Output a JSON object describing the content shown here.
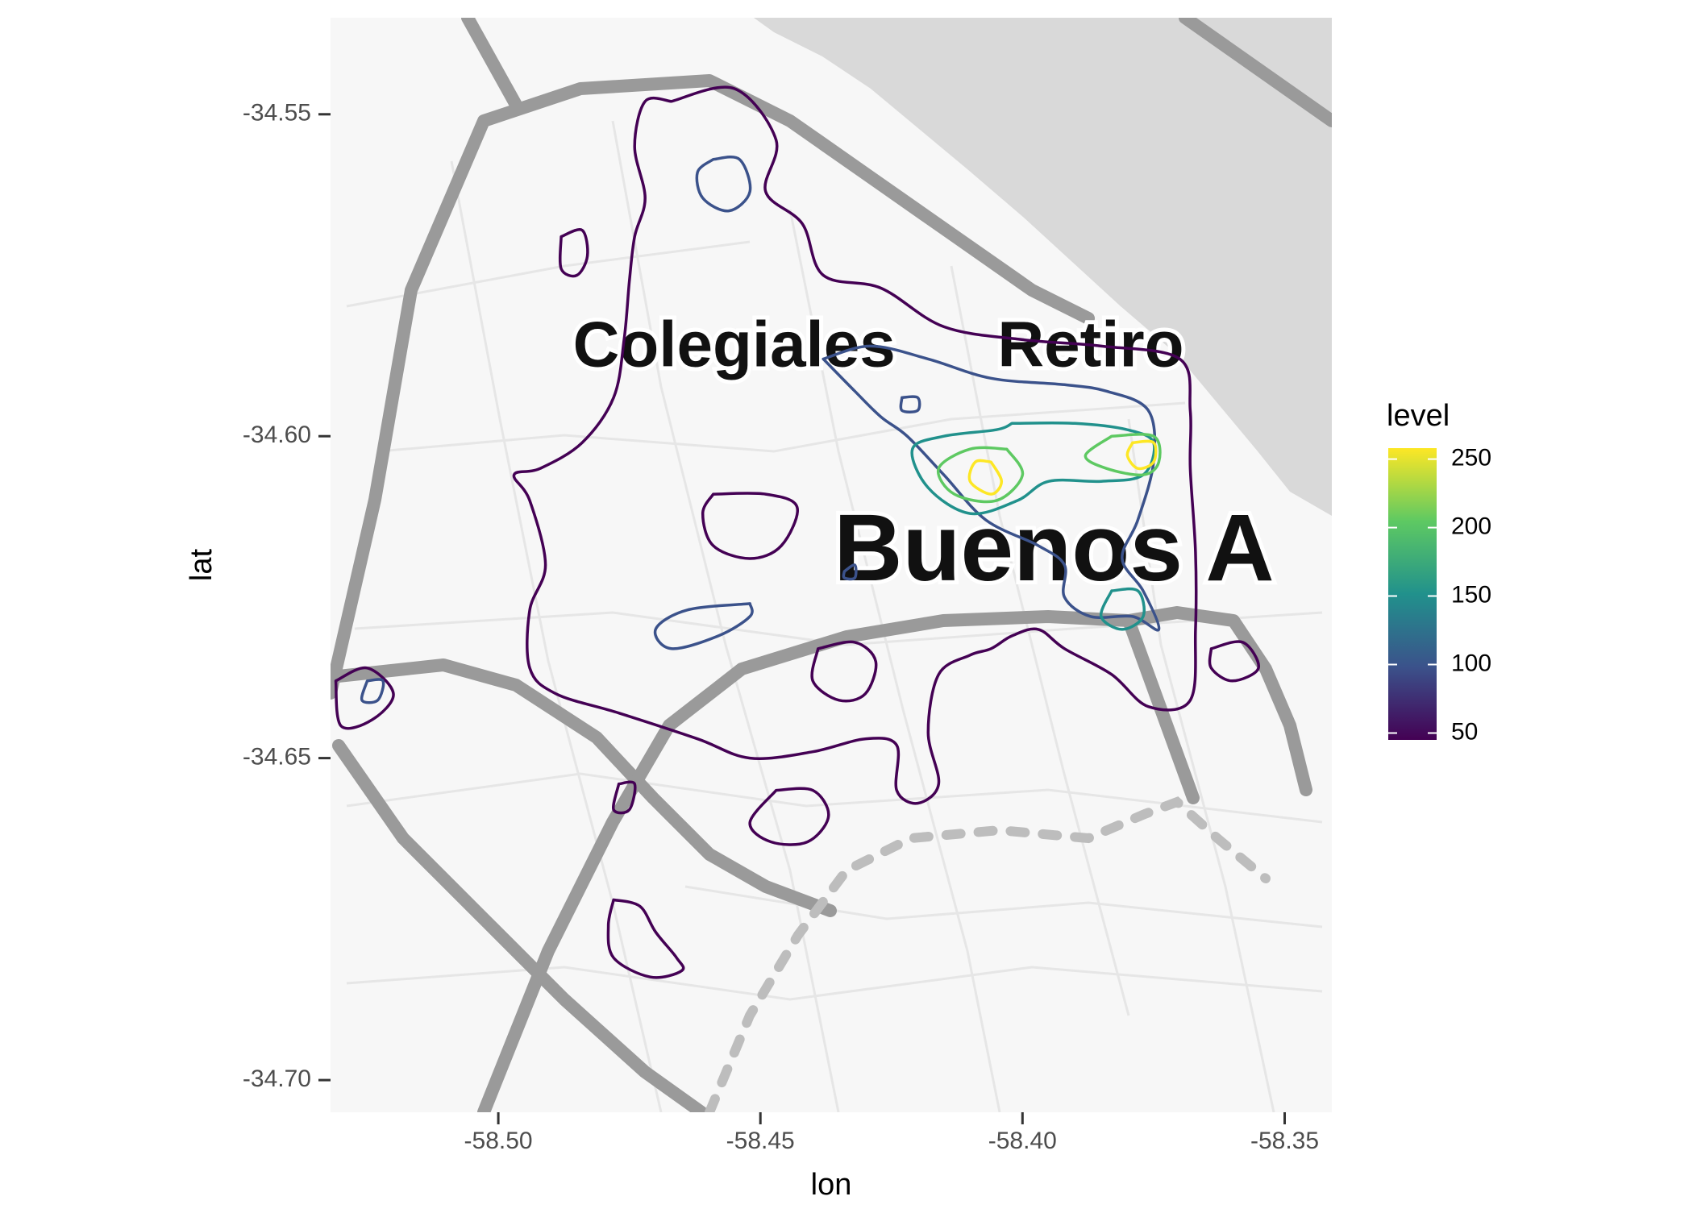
{
  "map": {
    "place_labels": [
      {
        "text": "Colegiales",
        "lon": -58.455,
        "lat": -34.5865,
        "size": 80
      },
      {
        "text": "Retiro",
        "lon": -58.387,
        "lat": -34.5865,
        "size": 80
      },
      {
        "text": "Buenos A",
        "lon": -58.394,
        "lat": -34.6185,
        "size": 118
      }
    ],
    "river_color": "#d9d9d9",
    "land_color": "#f7f7f7",
    "road_color": "#9a9a9a",
    "street_color": "#e6e6e6"
  },
  "chart_data": {
    "type": "contour",
    "xlabel": "lon",
    "ylabel": "lat",
    "xlim": [
      -58.532,
      -58.341
    ],
    "ylim": [
      -34.705,
      -34.535
    ],
    "xticks": [
      -58.5,
      -58.45,
      -58.4,
      -58.35
    ],
    "xtick_labels": [
      "-58.50",
      "-58.45",
      "-58.40",
      "-58.35"
    ],
    "yticks": [
      -34.55,
      -34.6,
      -34.65,
      -34.7
    ],
    "ytick_labels": [
      "-34.55",
      "-34.60",
      "-34.65",
      "-34.70"
    ],
    "legend": {
      "title": "level",
      "placement": "right",
      "ticks": [
        50,
        100,
        150,
        200,
        250
      ],
      "tick_labels": [
        "50",
        "100",
        "150",
        "200",
        "250"
      ],
      "range": [
        45,
        258
      ]
    },
    "contours": [
      {
        "level": 50,
        "color": "#440154",
        "points": [
          [
            -58.467,
            -34.548
          ],
          [
            -58.455,
            -34.546
          ],
          [
            -58.447,
            -34.554
          ],
          [
            -58.449,
            -34.562
          ],
          [
            -58.442,
            -34.567
          ],
          [
            -58.438,
            -34.575
          ],
          [
            -58.427,
            -34.577
          ],
          [
            -58.415,
            -34.583
          ],
          [
            -58.4,
            -34.585
          ],
          [
            -58.385,
            -34.586
          ],
          [
            -58.37,
            -34.588
          ],
          [
            -58.368,
            -34.596
          ],
          [
            -58.368,
            -34.605
          ],
          [
            -58.367,
            -34.618
          ],
          [
            -58.367,
            -34.63
          ],
          [
            -58.368,
            -34.641
          ],
          [
            -58.376,
            -34.642
          ],
          [
            -58.383,
            -34.637
          ],
          [
            -58.392,
            -34.633
          ],
          [
            -58.397,
            -34.63
          ],
          [
            -58.402,
            -34.631
          ],
          [
            -58.406,
            -34.633
          ],
          [
            -58.41,
            -34.634
          ],
          [
            -58.416,
            -34.637
          ],
          [
            -58.418,
            -34.646
          ],
          [
            -58.416,
            -34.654
          ],
          [
            -58.42,
            -34.657
          ],
          [
            -58.424,
            -34.655
          ],
          [
            -58.424,
            -34.648
          ],
          [
            -58.43,
            -34.647
          ],
          [
            -58.44,
            -34.649
          ],
          [
            -58.452,
            -34.65
          ],
          [
            -58.462,
            -34.647
          ],
          [
            -58.477,
            -34.643
          ],
          [
            -58.489,
            -34.64
          ],
          [
            -58.494,
            -34.636
          ],
          [
            -58.494,
            -34.627
          ],
          [
            -58.491,
            -34.62
          ],
          [
            -58.494,
            -34.61
          ],
          [
            -58.497,
            -34.606
          ],
          [
            -58.492,
            -34.605
          ],
          [
            -58.484,
            -34.601
          ],
          [
            -58.478,
            -34.594
          ],
          [
            -58.476,
            -34.585
          ],
          [
            -58.475,
            -34.576
          ],
          [
            -58.474,
            -34.569
          ],
          [
            -58.472,
            -34.563
          ],
          [
            -58.474,
            -34.555
          ],
          [
            -58.472,
            -34.548
          ],
          [
            -58.467,
            -34.548
          ]
        ]
      },
      {
        "level": 50,
        "color": "#440154",
        "points": [
          [
            -58.531,
            -34.638
          ],
          [
            -58.525,
            -34.636
          ],
          [
            -58.52,
            -34.64
          ],
          [
            -58.524,
            -34.644
          ],
          [
            -58.53,
            -34.645
          ],
          [
            -58.531,
            -34.638
          ]
        ]
      },
      {
        "level": 50,
        "color": "#440154",
        "points": [
          [
            -58.488,
            -34.569
          ],
          [
            -58.484,
            -34.568
          ],
          [
            -58.483,
            -34.572
          ],
          [
            -58.485,
            -34.575
          ],
          [
            -58.488,
            -34.574
          ],
          [
            -58.488,
            -34.569
          ]
        ]
      },
      {
        "level": 50,
        "color": "#440154",
        "points": [
          [
            -58.459,
            -34.609
          ],
          [
            -58.449,
            -34.609
          ],
          [
            -58.443,
            -34.611
          ],
          [
            -58.446,
            -34.617
          ],
          [
            -58.452,
            -34.619
          ],
          [
            -58.459,
            -34.617
          ],
          [
            -58.461,
            -34.612
          ],
          [
            -58.459,
            -34.609
          ]
        ]
      },
      {
        "level": 50,
        "color": "#440154",
        "points": [
          [
            -58.439,
            -34.633
          ],
          [
            -58.432,
            -34.632
          ],
          [
            -58.428,
            -34.635
          ],
          [
            -58.43,
            -34.64
          ],
          [
            -58.435,
            -34.641
          ],
          [
            -58.44,
            -34.638
          ],
          [
            -58.439,
            -34.633
          ]
        ]
      },
      {
        "level": 50,
        "color": "#440154",
        "points": [
          [
            -58.364,
            -34.633
          ],
          [
            -58.358,
            -34.632
          ],
          [
            -58.355,
            -34.636
          ],
          [
            -58.36,
            -34.638
          ],
          [
            -58.364,
            -34.636
          ],
          [
            -58.364,
            -34.633
          ]
        ]
      },
      {
        "level": 50,
        "color": "#440154",
        "points": [
          [
            -58.477,
            -34.654
          ],
          [
            -58.474,
            -34.654
          ],
          [
            -58.475,
            -34.658
          ],
          [
            -58.478,
            -34.658
          ],
          [
            -58.477,
            -34.654
          ]
        ]
      },
      {
        "level": 50,
        "color": "#440154",
        "points": [
          [
            -58.447,
            -34.655
          ],
          [
            -58.44,
            -34.655
          ],
          [
            -58.437,
            -34.659
          ],
          [
            -58.441,
            -34.663
          ],
          [
            -58.448,
            -34.663
          ],
          [
            -58.452,
            -34.66
          ],
          [
            -58.447,
            -34.655
          ]
        ]
      },
      {
        "level": 50,
        "color": "#440154",
        "points": [
          [
            -58.478,
            -34.672
          ],
          [
            -58.473,
            -34.673
          ],
          [
            -58.47,
            -34.677
          ],
          [
            -58.466,
            -34.681
          ],
          [
            -58.465,
            -34.683
          ],
          [
            -58.471,
            -34.684
          ],
          [
            -58.478,
            -34.681
          ],
          [
            -58.479,
            -34.676
          ],
          [
            -58.478,
            -34.672
          ]
        ]
      },
      {
        "level": 100,
        "color": "#3b528b",
        "points": [
          [
            -58.459,
            -34.557
          ],
          [
            -58.454,
            -34.557
          ],
          [
            -58.452,
            -34.562
          ],
          [
            -58.456,
            -34.565
          ],
          [
            -58.461,
            -34.563
          ],
          [
            -58.462,
            -34.559
          ],
          [
            -58.459,
            -34.557
          ]
        ]
      },
      {
        "level": 100,
        "color": "#3b528b",
        "points": [
          [
            -58.438,
            -34.588
          ],
          [
            -58.429,
            -34.586
          ],
          [
            -58.418,
            -34.588
          ],
          [
            -58.406,
            -34.591
          ],
          [
            -58.392,
            -34.592
          ],
          [
            -58.384,
            -34.593
          ],
          [
            -58.376,
            -34.596
          ],
          [
            -58.375,
            -34.604
          ],
          [
            -58.378,
            -34.613
          ],
          [
            -58.381,
            -34.619
          ],
          [
            -58.377,
            -34.624
          ],
          [
            -58.374,
            -34.63
          ],
          [
            -58.379,
            -34.628
          ],
          [
            -58.387,
            -34.628
          ],
          [
            -58.392,
            -34.625
          ],
          [
            -58.392,
            -34.62
          ],
          [
            -58.397,
            -34.617
          ],
          [
            -58.407,
            -34.613
          ],
          [
            -58.415,
            -34.606
          ],
          [
            -58.422,
            -34.6
          ],
          [
            -58.427,
            -34.597
          ],
          [
            -58.432,
            -34.593
          ],
          [
            -58.438,
            -34.588
          ]
        ]
      },
      {
        "level": 100,
        "color": "#3b528b",
        "points": [
          [
            -58.525,
            -34.638
          ],
          [
            -58.522,
            -34.638
          ],
          [
            -58.523,
            -34.641
          ],
          [
            -58.526,
            -34.641
          ],
          [
            -58.525,
            -34.638
          ]
        ]
      },
      {
        "level": 100,
        "color": "#3b528b",
        "points": [
          [
            -58.423,
            -34.594
          ],
          [
            -58.42,
            -34.594
          ],
          [
            -58.42,
            -34.596
          ],
          [
            -58.423,
            -34.596
          ],
          [
            -58.423,
            -34.594
          ]
        ]
      },
      {
        "level": 100,
        "color": "#3b528b",
        "points": [
          [
            -58.452,
            -34.626
          ],
          [
            -58.464,
            -34.627
          ],
          [
            -58.47,
            -34.63
          ],
          [
            -58.467,
            -34.633
          ],
          [
            -58.458,
            -34.631
          ],
          [
            -58.452,
            -34.628
          ],
          [
            -58.452,
            -34.626
          ]
        ]
      },
      {
        "level": 100,
        "color": "#3b528b",
        "points": [
          [
            -58.434,
            -34.621
          ],
          [
            -58.432,
            -34.62
          ],
          [
            -58.432,
            -34.622
          ],
          [
            -58.434,
            -34.622
          ],
          [
            -58.434,
            -34.621
          ]
        ]
      },
      {
        "level": 150,
        "color": "#21918c",
        "points": [
          [
            -58.402,
            -34.598
          ],
          [
            -58.39,
            -34.598
          ],
          [
            -58.38,
            -34.599
          ],
          [
            -58.375,
            -34.601
          ],
          [
            -58.377,
            -34.606
          ],
          [
            -58.385,
            -34.607
          ],
          [
            -58.395,
            -34.607
          ],
          [
            -58.401,
            -34.61
          ],
          [
            -58.41,
            -34.612
          ],
          [
            -58.418,
            -34.608
          ],
          [
            -58.421,
            -34.602
          ],
          [
            -58.415,
            -34.6
          ],
          [
            -58.405,
            -34.599
          ],
          [
            -58.402,
            -34.598
          ]
        ]
      },
      {
        "level": 150,
        "color": "#21918c",
        "points": [
          [
            -58.383,
            -34.624
          ],
          [
            -58.378,
            -34.624
          ],
          [
            -58.377,
            -34.628
          ],
          [
            -58.381,
            -34.63
          ],
          [
            -58.385,
            -34.628
          ],
          [
            -58.383,
            -34.624
          ]
        ]
      },
      {
        "level": 200,
        "color": "#5ec962",
        "points": [
          [
            -58.403,
            -34.602
          ],
          [
            -58.41,
            -34.602
          ],
          [
            -58.416,
            -34.605
          ],
          [
            -58.413,
            -34.609
          ],
          [
            -58.405,
            -34.61
          ],
          [
            -58.4,
            -34.606
          ],
          [
            -58.403,
            -34.602
          ]
        ]
      },
      {
        "level": 200,
        "color": "#5ec962",
        "points": [
          [
            -58.383,
            -34.6
          ],
          [
            -58.375,
            -34.6
          ],
          [
            -58.374,
            -34.604
          ],
          [
            -58.377,
            -34.606
          ],
          [
            -58.384,
            -34.605
          ],
          [
            -58.388,
            -34.603
          ],
          [
            -58.383,
            -34.6
          ]
        ]
      },
      {
        "level": 250,
        "color": "#fde725",
        "points": [
          [
            -58.406,
            -34.604
          ],
          [
            -58.409,
            -34.604
          ],
          [
            -58.41,
            -34.607
          ],
          [
            -58.406,
            -34.609
          ],
          [
            -58.404,
            -34.607
          ],
          [
            -58.406,
            -34.604
          ]
        ]
      },
      {
        "level": 250,
        "color": "#fde725",
        "points": [
          [
            -58.379,
            -34.601
          ],
          [
            -58.375,
            -34.601
          ],
          [
            -58.375,
            -34.604
          ],
          [
            -58.378,
            -34.605
          ],
          [
            -58.38,
            -34.603
          ],
          [
            -58.379,
            -34.601
          ]
        ]
      }
    ]
  }
}
